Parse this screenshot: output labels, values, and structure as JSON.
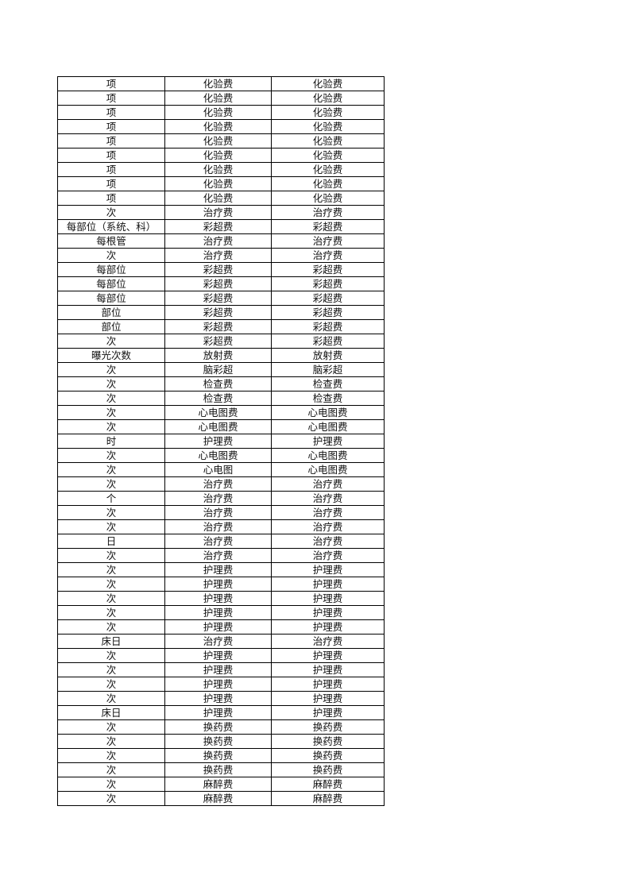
{
  "table": {
    "rows": [
      [
        "项",
        "化验费",
        "化验费"
      ],
      [
        "项",
        "化验费",
        "化验费"
      ],
      [
        "项",
        "化验费",
        "化验费"
      ],
      [
        "项",
        "化验费",
        "化验费"
      ],
      [
        "项",
        "化验费",
        "化验费"
      ],
      [
        "项",
        "化验费",
        "化验费"
      ],
      [
        "项",
        "化验费",
        "化验费"
      ],
      [
        "项",
        "化验费",
        "化验费"
      ],
      [
        "项",
        "化验费",
        "化验费"
      ],
      [
        "次",
        "治疗费",
        "治疗费"
      ],
      [
        "每部位（系统、科）",
        "彩超费",
        "彩超费"
      ],
      [
        "每根管",
        "治疗费",
        "治疗费"
      ],
      [
        "次",
        "治疗费",
        "治疗费"
      ],
      [
        "每部位",
        "彩超费",
        "彩超费"
      ],
      [
        "每部位",
        "彩超费",
        "彩超费"
      ],
      [
        "每部位",
        "彩超费",
        "彩超费"
      ],
      [
        "部位",
        "彩超费",
        "彩超费"
      ],
      [
        "部位",
        "彩超费",
        "彩超费"
      ],
      [
        "次",
        "彩超费",
        "彩超费"
      ],
      [
        "曝光次数",
        "放射费",
        "放射费"
      ],
      [
        "次",
        "脑彩超",
        "脑彩超"
      ],
      [
        "次",
        "检查费",
        "检查费"
      ],
      [
        "次",
        "检查费",
        "检查费"
      ],
      [
        "次",
        "心电图费",
        "心电图费"
      ],
      [
        "次",
        "心电图费",
        "心电图费"
      ],
      [
        "时",
        "护理费",
        "护理费"
      ],
      [
        "次",
        "心电图费",
        "心电图费"
      ],
      [
        "次",
        "心电图",
        "心电图费"
      ],
      [
        "次",
        "治疗费",
        "治疗费"
      ],
      [
        "个",
        "治疗费",
        "治疗费"
      ],
      [
        "次",
        "治疗费",
        "治疗费"
      ],
      [
        "次",
        "治疗费",
        "治疗费"
      ],
      [
        "日",
        "治疗费",
        "治疗费"
      ],
      [
        "次",
        "治疗费",
        "治疗费"
      ],
      [
        "次",
        "护理费",
        "护理费"
      ],
      [
        "次",
        "护理费",
        "护理费"
      ],
      [
        "次",
        "护理费",
        "护理费"
      ],
      [
        "次",
        "护理费",
        "护理费"
      ],
      [
        "次",
        "护理费",
        "护理费"
      ],
      [
        "床日",
        "治疗费",
        "治疗费"
      ],
      [
        "次",
        "护理费",
        "护理费"
      ],
      [
        "次",
        "护理费",
        "护理费"
      ],
      [
        "次",
        "护理费",
        "护理费"
      ],
      [
        "次",
        "护理费",
        "护理费"
      ],
      [
        "床日",
        "护理费",
        "护理费"
      ],
      [
        "次",
        "换药费",
        "换药费"
      ],
      [
        "次",
        "换药费",
        "换药费"
      ],
      [
        "次",
        "换药费",
        "换药费"
      ],
      [
        "次",
        "换药费",
        "换药费"
      ],
      [
        "次",
        "麻醉费",
        "麻醉费"
      ],
      [
        "次",
        "麻醉费",
        "麻醉费"
      ]
    ]
  }
}
